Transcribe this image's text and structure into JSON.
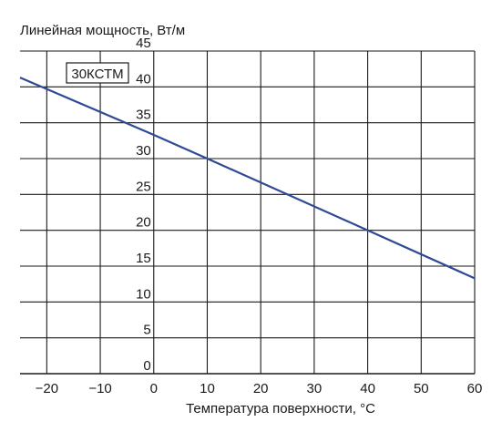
{
  "chart_data": {
    "type": "line",
    "title": "",
    "ylabel": "Линейная мощность, Вт/м",
    "xlabel": "Температура поверхности, °C",
    "xlim": [
      -25,
      60
    ],
    "ylim": [
      0,
      45
    ],
    "x_ticks": [
      -20,
      -10,
      0,
      10,
      20,
      30,
      40,
      50,
      60
    ],
    "y_ticks": [
      0,
      5,
      10,
      15,
      20,
      25,
      30,
      35,
      40,
      45
    ],
    "grid": true,
    "line_color": "#2f4a94",
    "series": [
      {
        "name": "30КСТМ",
        "x": [
          -25,
          0,
          10,
          40,
          60
        ],
        "y": [
          41.3,
          33.3,
          30.0,
          20.0,
          13.3
        ]
      }
    ]
  }
}
